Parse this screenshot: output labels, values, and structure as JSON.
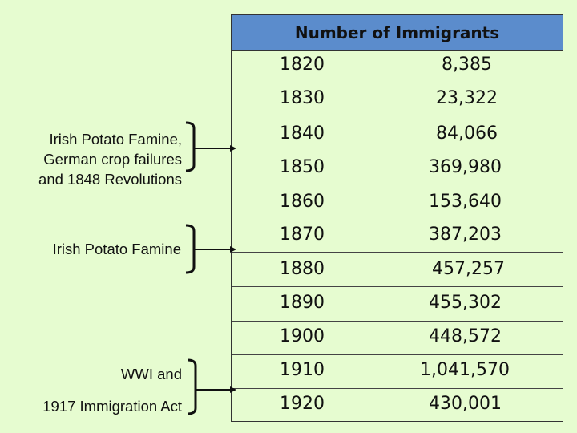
{
  "table": {
    "header": "Number of Immigrants",
    "rows": [
      {
        "year": "1820",
        "count": "8,385"
      },
      {
        "year": "1830",
        "count": "23,322"
      },
      {
        "year": "1840",
        "count": "84,066"
      },
      {
        "year": "1850",
        "count": "369,980"
      },
      {
        "year": "1860",
        "count": "153,640"
      },
      {
        "year": "1870",
        "count": "387,203"
      },
      {
        "year": "1880",
        "count": "457,257"
      },
      {
        "year": "1890",
        "count": "455,302"
      },
      {
        "year": "1900",
        "count": "448,572"
      },
      {
        "year": "1910",
        "count": "1,041,570"
      },
      {
        "year": "1920",
        "count": "430,001"
      }
    ]
  },
  "annotations": {
    "famine_1": {
      "line1": "Irish Potato Famine,",
      "line2": "German crop failures",
      "line3": "and 1848 Revolutions"
    },
    "famine_2": "Irish Potato Famine",
    "wwi": {
      "line1": "WWI and",
      "line2": "1917 Immigration Act"
    }
  },
  "colors": {
    "background": "#e6fcd0",
    "header": "#5b8ccc"
  }
}
